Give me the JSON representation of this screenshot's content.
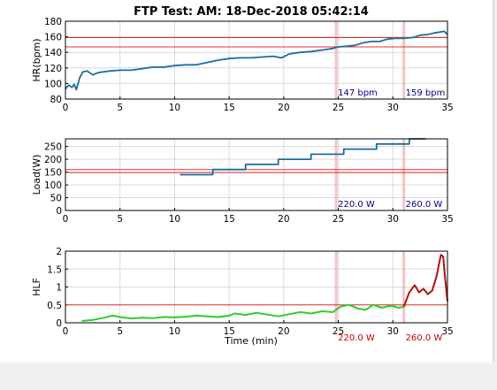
{
  "figure_title": "FTP Test: AM: 18-Dec-2018 05:42:14",
  "colors": {
    "hr_line": "#1a6e9e",
    "load_line": "#1a6e9e",
    "hlf_green": "#2ecc2e",
    "hlf_red": "#b01010",
    "ref_line": "#e03030",
    "marker": "#f09090",
    "grid": "#d9d9d9",
    "ann_blue": "#000080",
    "ann_red": "#c00000"
  },
  "chart_data": [
    {
      "type": "line",
      "title": "",
      "xlabel": "",
      "ylabel": "HR(bpm)",
      "xlim": [
        0,
        35
      ],
      "ylim": [
        80,
        180
      ],
      "xticks": [
        "0",
        "5",
        "10",
        "15",
        "20",
        "25",
        "30",
        "35"
      ],
      "yticks": [
        "80",
        "100",
        "120",
        "140",
        "160",
        "180"
      ],
      "grid": true,
      "hlines": [
        159,
        147
      ],
      "vlines": [
        24.8,
        31.0
      ],
      "annotations": [
        "147 bpm",
        "159 bpm"
      ],
      "series": [
        {
          "x": [
            0,
            0.3,
            0.6,
            0.8,
            1.0,
            1.3,
            1.6,
            2.0,
            2.5,
            3.0,
            4.0,
            5.0,
            6.0,
            7.0,
            8.0,
            9.0,
            10.0,
            11.0,
            12.0,
            13.0,
            14.0,
            15.0,
            16.0,
            17.0,
            18.0,
            19.0,
            19.8,
            20.5,
            21.5,
            22.5,
            23.5,
            24.5,
            25.0,
            25.8,
            26.5,
            27.2,
            28.0,
            28.8,
            29.5,
            30.2,
            31.0,
            31.8,
            32.5,
            33.2,
            33.8,
            34.3,
            34.7,
            35.0
          ],
          "y": [
            93,
            98,
            95,
            99,
            92,
            107,
            115,
            116,
            111,
            114,
            116,
            117,
            117,
            119,
            121,
            121,
            123,
            124,
            124,
            127,
            130,
            132,
            133,
            133,
            134,
            135,
            133,
            138,
            140,
            141,
            143,
            145,
            147,
            148,
            149,
            152,
            154,
            154,
            157,
            158,
            158,
            159,
            162,
            163,
            165,
            166,
            167,
            163
          ]
        }
      ]
    },
    {
      "type": "line",
      "title": "",
      "xlabel": "",
      "ylabel": "Load(W)",
      "xlim": [
        0,
        35
      ],
      "ylim": [
        0,
        280
      ],
      "xticks": [
        "0",
        "5",
        "10",
        "15",
        "20",
        "25",
        "30",
        "35"
      ],
      "yticks": [
        "0",
        "50",
        "100",
        "150",
        "200",
        "250"
      ],
      "grid": true,
      "hlines": [
        160,
        148
      ],
      "vlines": [
        24.8,
        31.0
      ],
      "annotations": [
        "220.0 W",
        "260.0 W"
      ],
      "series": [
        {
          "x": [
            10.5,
            13.5,
            13.5,
            16.5,
            16.5,
            19.5,
            19.5,
            22.5,
            22.5,
            25.5,
            25.5,
            28.5,
            28.5,
            31.5,
            31.5,
            33.0
          ],
          "y": [
            140,
            140,
            160,
            160,
            180,
            180,
            200,
            200,
            220,
            220,
            240,
            240,
            260,
            260,
            280,
            280
          ]
        }
      ]
    },
    {
      "type": "line",
      "title": "",
      "xlabel": "Time (min)",
      "ylabel": "HLF",
      "xlim": [
        0,
        35
      ],
      "ylim": [
        0,
        2
      ],
      "xticks": [
        "0",
        "5",
        "10",
        "15",
        "20",
        "25",
        "30",
        "35"
      ],
      "yticks": [
        "0",
        "0.5",
        "1",
        "1.5",
        "2"
      ],
      "grid": true,
      "hlines": [
        0.5
      ],
      "vlines": [
        24.8,
        31.0
      ],
      "annotations": [
        "220.0 W",
        "260.0 W"
      ],
      "series": [
        {
          "color_key": "hlf_green",
          "x": [
            1.5,
            2.5,
            3.5,
            4.3,
            5.0,
            6.0,
            7.0,
            8.0,
            9.0,
            10.0,
            11.0,
            12.0,
            13.0,
            14.0,
            15.0,
            15.5,
            16.5,
            17.5,
            18.5,
            19.5,
            20.5,
            21.5,
            22.5,
            23.5,
            24.5,
            25.2,
            26.0,
            26.8,
            27.5,
            28.2,
            29.0,
            29.8,
            30.5,
            31.0
          ],
          "y": [
            0.05,
            0.08,
            0.14,
            0.2,
            0.16,
            0.12,
            0.14,
            0.13,
            0.16,
            0.15,
            0.17,
            0.2,
            0.18,
            0.16,
            0.2,
            0.26,
            0.22,
            0.28,
            0.23,
            0.18,
            0.24,
            0.3,
            0.26,
            0.32,
            0.3,
            0.45,
            0.5,
            0.4,
            0.36,
            0.5,
            0.42,
            0.48,
            0.42,
            0.45
          ]
        },
        {
          "color_key": "hlf_red",
          "x": [
            31.0,
            31.5,
            32.0,
            32.4,
            32.8,
            33.2,
            33.6,
            34.0,
            34.2,
            34.4,
            34.6,
            34.8,
            35.0
          ],
          "y": [
            0.45,
            0.85,
            1.05,
            0.85,
            0.95,
            0.8,
            0.9,
            1.3,
            1.6,
            1.9,
            1.85,
            1.2,
            0.6
          ]
        }
      ]
    }
  ]
}
